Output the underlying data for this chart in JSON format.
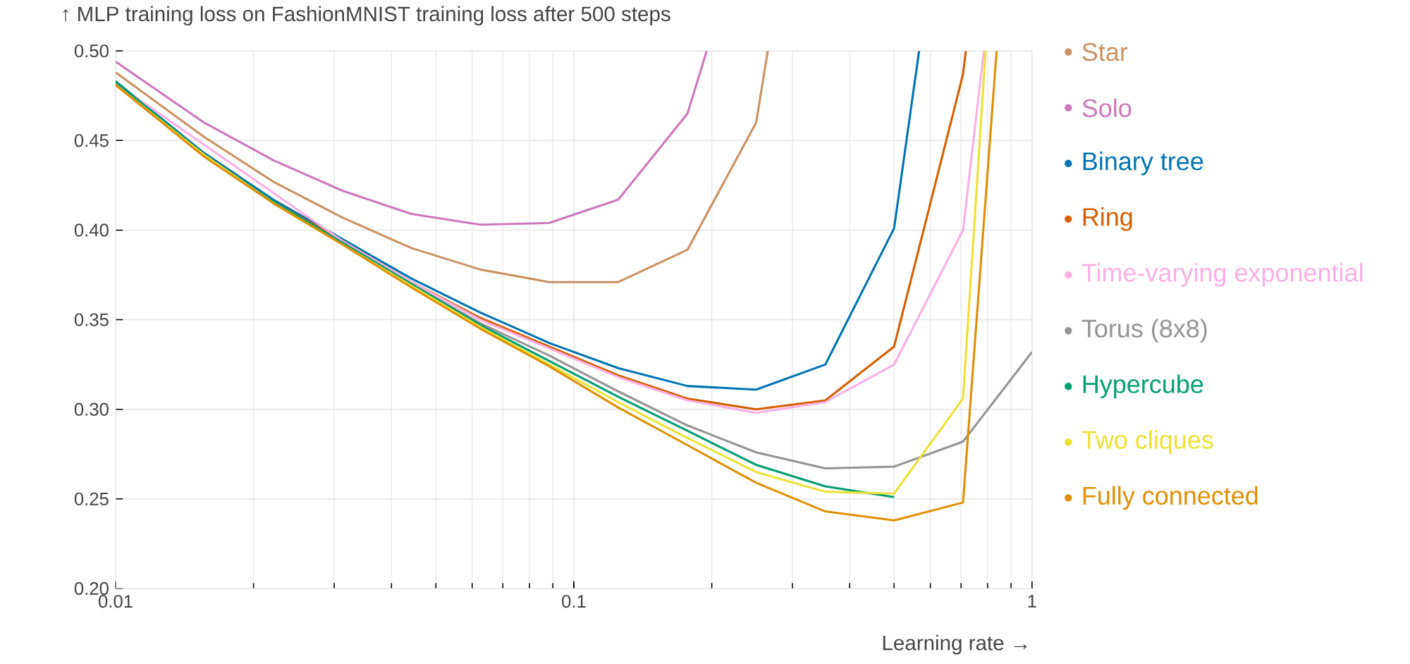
{
  "chart_data": {
    "type": "line",
    "title": "↑ MLP training loss on FashionMNIST training loss after 500 steps",
    "xlabel": "Learning rate →",
    "log": "x",
    "grid": true,
    "legend": "right",
    "xlim": [
      0.01,
      1
    ],
    "xticks": [
      0.01,
      0.1,
      1
    ],
    "ylim": [
      0.2,
      0.5
    ],
    "yticks": [
      {
        "value": 0.2,
        "label": "0.20"
      },
      {
        "value": 0.25,
        "label": "0.25"
      },
      {
        "value": 0.3,
        "label": "0.30"
      },
      {
        "value": 0.35,
        "label": "0.35"
      },
      {
        "value": 0.4,
        "label": "0.40"
      },
      {
        "value": 0.45,
        "label": "0.45"
      },
      {
        "value": 0.5,
        "label": "0.50"
      }
    ],
    "series": [
      {
        "name": "Star",
        "color": "#ca9161",
        "x": [
          0.01,
          0.0156,
          0.0221,
          0.03125,
          0.0442,
          0.0625,
          0.0884,
          0.125,
          0.177,
          0.25,
          0.265
        ],
        "values": [
          0.488,
          0.452,
          0.427,
          0.407,
          0.39,
          0.378,
          0.371,
          0.371,
          0.389,
          0.46,
          0.5
        ]
      },
      {
        "name": "Solo",
        "color": "#cc78bc",
        "x": [
          0.01,
          0.0156,
          0.0221,
          0.03125,
          0.0442,
          0.0625,
          0.0884,
          0.125,
          0.177,
          0.195
        ],
        "values": [
          0.494,
          0.46,
          0.439,
          0.422,
          0.409,
          0.403,
          0.404,
          0.417,
          0.465,
          0.5
        ]
      },
      {
        "name": "Binary tree",
        "color": "#0173b2",
        "x": [
          0.01,
          0.0156,
          0.0221,
          0.03125,
          0.0442,
          0.0625,
          0.0884,
          0.125,
          0.177,
          0.25,
          0.354,
          0.5,
          0.567
        ],
        "values": [
          0.483,
          0.443,
          0.417,
          0.395,
          0.373,
          0.354,
          0.337,
          0.323,
          0.313,
          0.311,
          0.325,
          0.401,
          0.5
        ]
      },
      {
        "name": "Ring",
        "color": "#d55e00",
        "x": [
          0.01,
          0.0156,
          0.0221,
          0.03125,
          0.0442,
          0.0625,
          0.0884,
          0.125,
          0.177,
          0.25,
          0.354,
          0.5,
          0.707,
          0.717
        ],
        "values": [
          0.482,
          0.442,
          0.416,
          0.394,
          0.371,
          0.351,
          0.335,
          0.319,
          0.306,
          0.3,
          0.305,
          0.335,
          0.487,
          0.5
        ]
      },
      {
        "name": "Time-varying exponential",
        "color": "#fbafe4",
        "x": [
          0.01,
          0.0156,
          0.0221,
          0.03125,
          0.0442,
          0.0625,
          0.0884,
          0.125,
          0.177,
          0.25,
          0.354,
          0.5,
          0.707,
          0.785
        ],
        "values": [
          0.482,
          null,
          null,
          0.394,
          0.371,
          0.35,
          0.334,
          0.318,
          0.305,
          0.298,
          0.304,
          0.325,
          0.4,
          0.5
        ]
      },
      {
        "name": "Torus (8x8)",
        "color": "#949494",
        "x": [
          0.01,
          0.0156,
          0.0221,
          0.03125,
          0.0442,
          0.0625,
          0.0884,
          0.125,
          0.177,
          0.25,
          0.354,
          0.5,
          0.707,
          1
        ],
        "values": [
          0.482,
          0.442,
          0.416,
          0.393,
          0.37,
          0.348,
          0.33,
          0.31,
          0.291,
          0.276,
          0.267,
          0.268,
          0.282,
          0.332
        ]
      },
      {
        "name": "Hypercube",
        "color": "#029e73",
        "x": [
          0.01,
          0.0156,
          0.0221,
          0.03125,
          0.0442,
          0.0625,
          0.0884,
          0.125,
          0.177,
          0.25,
          0.354,
          0.5
        ],
        "values": [
          0.483,
          0.442,
          0.416,
          0.393,
          0.37,
          0.347,
          0.327,
          0.307,
          0.288,
          0.269,
          0.257,
          0.251
        ]
      },
      {
        "name": "Two cliques",
        "color": "#ece133",
        "x": [
          0.01,
          0.0156,
          0.0221,
          0.03125,
          0.0442,
          0.0625,
          0.0884,
          0.125,
          0.177,
          0.25,
          0.354,
          0.5,
          0.707,
          0.792
        ],
        "values": [
          0.481,
          0.442,
          0.415,
          0.392,
          0.369,
          0.346,
          0.325,
          0.304,
          0.284,
          0.265,
          0.254,
          0.253,
          0.306,
          0.5
        ]
      },
      {
        "name": "Fully connected",
        "color": "#de8f05",
        "x": [
          0.01,
          0.0156,
          0.0221,
          0.03125,
          0.0442,
          0.0625,
          0.0884,
          0.125,
          0.177,
          0.25,
          0.354,
          0.5,
          0.707,
          0.837
        ],
        "values": [
          0.481,
          0.441,
          0.415,
          0.392,
          0.368,
          0.345,
          0.324,
          0.301,
          0.28,
          0.259,
          0.243,
          0.238,
          0.248,
          0.5
        ]
      }
    ]
  }
}
